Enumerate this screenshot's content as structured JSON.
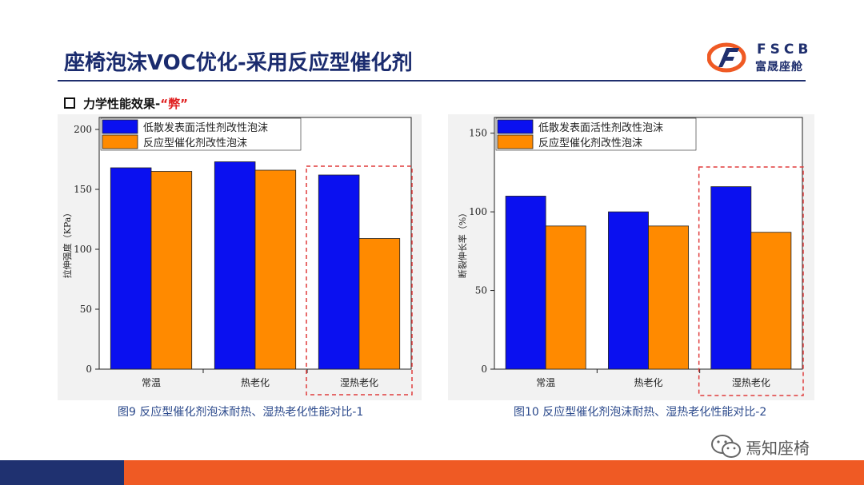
{
  "slide": {
    "title": "座椅泡沫VOC优化-采用反应型催化剂",
    "section_label": "力学性能效果-",
    "section_highlight": "“弊”"
  },
  "logo": {
    "en": "FSCB",
    "cn": "富晟座舱"
  },
  "watermark": {
    "text": "焉知座椅"
  },
  "colors": {
    "series1": "#0a10f0",
    "series2": "#ff8a00",
    "highlight_box": "#e03c3c",
    "title": "#1a2b6e"
  },
  "chart_data": [
    {
      "type": "bar",
      "caption": "图9 反应型催化剂泡沫耐热、湿热老化性能对比-1",
      "categories": [
        "常温",
        "热老化",
        "湿热老化"
      ],
      "series": [
        {
          "name": "低散发表面活性剂改性泡沫",
          "values": [
            168,
            173,
            162
          ]
        },
        {
          "name": "反应型催化剂改性泡沫",
          "values": [
            165,
            166,
            109
          ]
        }
      ],
      "ylabel": "拉伸强度（KPa）",
      "ylim": [
        0,
        210
      ],
      "yticks": [
        0,
        50,
        100,
        150,
        200
      ],
      "legend": "top-left",
      "highlight_category": "湿热老化"
    },
    {
      "type": "bar",
      "caption": "图10 反应型催化剂泡沫耐热、湿热老化性能对比-2",
      "categories": [
        "常温",
        "热老化",
        "湿热老化"
      ],
      "series": [
        {
          "name": "低散发表面活性剂改性泡沫",
          "values": [
            110,
            100,
            116
          ]
        },
        {
          "name": "反应型催化剂改性泡沫",
          "values": [
            91,
            91,
            87
          ]
        }
      ],
      "ylabel": "断裂伸长率（%）",
      "ylim": [
        0,
        160
      ],
      "yticks": [
        0,
        50,
        100,
        150
      ],
      "legend": "top-left",
      "highlight_category": "湿热老化"
    }
  ]
}
